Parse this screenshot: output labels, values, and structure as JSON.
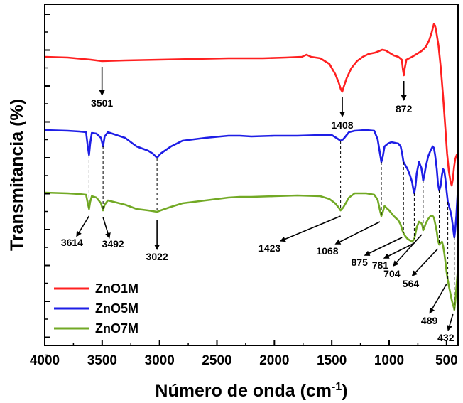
{
  "chart_data": {
    "type": "line",
    "xlabel": "Número de onda (cm",
    "xlabel_sup": "-1",
    "xlabel_suffix": ")",
    "ylabel": "Transmitancia (%)",
    "xlim": [
      4000,
      400
    ],
    "x_reversed": true,
    "xticks": [
      {
        "value": 4000,
        "label": "4000"
      },
      {
        "value": 3500,
        "label": "3500"
      },
      {
        "value": 3000,
        "label": "3000"
      },
      {
        "value": 2500,
        "label": "2500"
      },
      {
        "value": 2000,
        "label": "2000"
      },
      {
        "value": 1500,
        "label": "1500"
      },
      {
        "value": 1000,
        "label": "1000"
      },
      {
        "value": 500,
        "label": "500"
      }
    ],
    "y_tick_labels_shown": false,
    "legend": "bottom-left",
    "series": [
      {
        "name": "ZnO1M",
        "color": "#ff2020",
        "points": [
          [
            4000,
            74
          ],
          [
            3800,
            75
          ],
          [
            3600,
            78
          ],
          [
            3501,
            80
          ],
          [
            3300,
            79
          ],
          [
            3000,
            78
          ],
          [
            2700,
            77
          ],
          [
            2400,
            76
          ],
          [
            2100,
            76
          ],
          [
            1900,
            75
          ],
          [
            1760,
            74
          ],
          [
            1720,
            71
          ],
          [
            1680,
            74
          ],
          [
            1600,
            76
          ],
          [
            1520,
            84
          ],
          [
            1470,
            98
          ],
          [
            1440,
            110
          ],
          [
            1420,
            120
          ],
          [
            1408,
            123
          ],
          [
            1395,
            116
          ],
          [
            1370,
            104
          ],
          [
            1330,
            90
          ],
          [
            1280,
            80
          ],
          [
            1230,
            74
          ],
          [
            1180,
            70
          ],
          [
            1120,
            68
          ],
          [
            1060,
            64
          ],
          [
            1030,
            65
          ],
          [
            1000,
            68
          ],
          [
            960,
            72
          ],
          [
            920,
            74
          ],
          [
            890,
            78
          ],
          [
            880,
            92
          ],
          [
            872,
            100
          ],
          [
            864,
            90
          ],
          [
            850,
            78
          ],
          [
            800,
            74
          ],
          [
            760,
            70
          ],
          [
            720,
            66
          ],
          [
            680,
            60
          ],
          [
            650,
            50
          ],
          [
            630,
            40
          ],
          [
            620,
            34
          ],
          [
            610,
            28
          ],
          [
            600,
            30
          ],
          [
            590,
            38
          ],
          [
            570,
            58
          ],
          [
            550,
            90
          ],
          [
            530,
            130
          ],
          [
            510,
            175
          ],
          [
            495,
            210
          ],
          [
            480,
            235
          ],
          [
            465,
            250
          ],
          [
            455,
            255
          ],
          [
            445,
            246
          ],
          [
            435,
            230
          ],
          [
            425,
            218
          ],
          [
            412,
            212
          ],
          [
            400,
            220
          ]
        ]
      },
      {
        "name": "ZnO5M",
        "color": "#1e1ee6",
        "points": [
          [
            4000,
            177
          ],
          [
            3800,
            178
          ],
          [
            3700,
            179
          ],
          [
            3640,
            180
          ],
          [
            3625,
            200
          ],
          [
            3614,
            212
          ],
          [
            3604,
            196
          ],
          [
            3590,
            181
          ],
          [
            3550,
            182
          ],
          [
            3510,
            188
          ],
          [
            3492,
            200
          ],
          [
            3478,
            186
          ],
          [
            3450,
            180
          ],
          [
            3300,
            188
          ],
          [
            3200,
            200
          ],
          [
            3100,
            206
          ],
          [
            3060,
            210
          ],
          [
            3022,
            216
          ],
          [
            2990,
            210
          ],
          [
            2900,
            200
          ],
          [
            2800,
            192
          ],
          [
            2600,
            188
          ],
          [
            2400,
            185
          ],
          [
            2300,
            185
          ],
          [
            2200,
            186
          ],
          [
            2000,
            185
          ],
          [
            1800,
            185
          ],
          [
            1600,
            184
          ],
          [
            1500,
            184
          ],
          [
            1460,
            188
          ],
          [
            1423,
            192
          ],
          [
            1400,
            190
          ],
          [
            1350,
            180
          ],
          [
            1300,
            178
          ],
          [
            1200,
            177
          ],
          [
            1130,
            178
          ],
          [
            1100,
            190
          ],
          [
            1075,
            215
          ],
          [
            1068,
            222
          ],
          [
            1055,
            214
          ],
          [
            1040,
            200
          ],
          [
            1010,
            196
          ],
          [
            980,
            194
          ],
          [
            950,
            195
          ],
          [
            920,
            196
          ],
          [
            900,
            200
          ],
          [
            885,
            212
          ],
          [
            875,
            222
          ],
          [
            860,
            226
          ],
          [
            840,
            232
          ],
          [
            820,
            240
          ],
          [
            800,
            250
          ],
          [
            790,
            260
          ],
          [
            781,
            266
          ],
          [
            770,
            255
          ],
          [
            760,
            238
          ],
          [
            740,
            222
          ],
          [
            720,
            230
          ],
          [
            710,
            240
          ],
          [
            704,
            248
          ],
          [
            695,
            242
          ],
          [
            680,
            228
          ],
          [
            660,
            214
          ],
          [
            640,
            206
          ],
          [
            620,
            200
          ],
          [
            610,
            202
          ],
          [
            600,
            212
          ],
          [
            585,
            232
          ],
          [
            575,
            252
          ],
          [
            564,
            262
          ],
          [
            552,
            256
          ],
          [
            540,
            240
          ],
          [
            530,
            232
          ],
          [
            520,
            234
          ],
          [
            510,
            246
          ],
          [
            500,
            262
          ],
          [
            489,
            278
          ],
          [
            478,
            284
          ],
          [
            465,
            292
          ],
          [
            455,
            300
          ],
          [
            445,
            312
          ],
          [
            438,
            322
          ],
          [
            432,
            328
          ],
          [
            425,
            318
          ],
          [
            415,
            298
          ],
          [
            405,
            270
          ],
          [
            400,
            250
          ]
        ]
      },
      {
        "name": "ZnO7M",
        "color": "#72a925",
        "points": [
          [
            4000,
            265
          ],
          [
            3800,
            266
          ],
          [
            3700,
            267
          ],
          [
            3640,
            268
          ],
          [
            3625,
            280
          ],
          [
            3614,
            288
          ],
          [
            3604,
            278
          ],
          [
            3590,
            270
          ],
          [
            3550,
            272
          ],
          [
            3510,
            280
          ],
          [
            3492,
            290
          ],
          [
            3478,
            282
          ],
          [
            3450,
            276
          ],
          [
            3300,
            282
          ],
          [
            3200,
            288
          ],
          [
            3100,
            290
          ],
          [
            3060,
            291
          ],
          [
            3022,
            292
          ],
          [
            2990,
            290
          ],
          [
            2900,
            285
          ],
          [
            2800,
            280
          ],
          [
            2600,
            276
          ],
          [
            2400,
            272
          ],
          [
            2300,
            271
          ],
          [
            2200,
            271
          ],
          [
            2000,
            270
          ],
          [
            1800,
            269
          ],
          [
            1600,
            270
          ],
          [
            1520,
            274
          ],
          [
            1470,
            280
          ],
          [
            1440,
            286
          ],
          [
            1423,
            290
          ],
          [
            1400,
            286
          ],
          [
            1350,
            272
          ],
          [
            1300,
            266
          ],
          [
            1200,
            266
          ],
          [
            1130,
            268
          ],
          [
            1100,
            275
          ],
          [
            1080,
            290
          ],
          [
            1068,
            298
          ],
          [
            1055,
            292
          ],
          [
            1040,
            284
          ],
          [
            1000,
            290
          ],
          [
            960,
            298
          ],
          [
            920,
            304
          ],
          [
            900,
            310
          ],
          [
            885,
            318
          ],
          [
            875,
            322
          ],
          [
            860,
            326
          ],
          [
            840,
            330
          ],
          [
            820,
            332
          ],
          [
            800,
            334
          ],
          [
            790,
            332
          ],
          [
            781,
            330
          ],
          [
            770,
            322
          ],
          [
            760,
            314
          ],
          [
            740,
            306
          ],
          [
            720,
            308
          ],
          [
            710,
            312
          ],
          [
            704,
            318
          ],
          [
            695,
            315
          ],
          [
            680,
            308
          ],
          [
            660,
            302
          ],
          [
            640,
            298
          ],
          [
            620,
            298
          ],
          [
            610,
            300
          ],
          [
            600,
            308
          ],
          [
            585,
            320
          ],
          [
            575,
            332
          ],
          [
            564,
            338
          ],
          [
            552,
            336
          ],
          [
            540,
            334
          ],
          [
            530,
            340
          ],
          [
            520,
            350
          ],
          [
            510,
            362
          ],
          [
            500,
            376
          ],
          [
            489,
            388
          ],
          [
            478,
            398
          ],
          [
            465,
            408
          ],
          [
            455,
            416
          ],
          [
            445,
            422
          ],
          [
            438,
            426
          ],
          [
            432,
            430
          ],
          [
            425,
            420
          ],
          [
            415,
            400
          ],
          [
            405,
            380
          ],
          [
            400,
            360
          ]
        ]
      }
    ],
    "annotations": [
      {
        "label": "3501",
        "series": 0,
        "at": 3501
      },
      {
        "label": "1408",
        "series": 0,
        "at": 1408
      },
      {
        "label": "872",
        "series": 0,
        "at": 872
      },
      {
        "label": "3614",
        "series": 2,
        "at": 3614
      },
      {
        "label": "3492",
        "series": 2,
        "at": 3492
      },
      {
        "label": "3022",
        "series": 2,
        "at": 3022
      },
      {
        "label": "1423",
        "series": 2,
        "at": 1423
      },
      {
        "label": "1068",
        "series": 2,
        "at": 1068
      },
      {
        "label": "875",
        "series": 2,
        "at": 875
      },
      {
        "label": "781",
        "series": 2,
        "at": 781
      },
      {
        "label": "704",
        "series": 2,
        "at": 704
      },
      {
        "label": "564",
        "series": 2,
        "at": 564
      },
      {
        "label": "489",
        "series": 2,
        "at": 489
      },
      {
        "label": "432",
        "series": 2,
        "at": 432
      }
    ]
  }
}
